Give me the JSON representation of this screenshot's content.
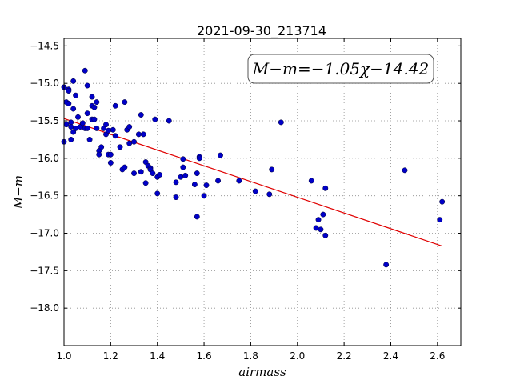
{
  "chart_data": {
    "type": "scatter",
    "title": "2021-09-30_213714",
    "xlabel": "airmass",
    "ylabel": "M−m",
    "xlim": [
      1.0,
      2.7
    ],
    "ylim": [
      -14.4,
      -18.5
    ],
    "x_tick_labels": [
      "1.0",
      "1.2",
      "1.4",
      "1.6",
      "1.8",
      "2.0",
      "2.2",
      "2.4",
      "2.6"
    ],
    "y_tick_labels": [
      "−14.5",
      "−15.0",
      "−15.5",
      "−16.0",
      "−16.5",
      "−17.0",
      "−17.5",
      "−18.0"
    ],
    "grid": true,
    "annotation": "M−m=−1.05χ−14.42",
    "points": {
      "x": [
        1.0,
        1.0,
        1.01,
        1.01,
        1.02,
        1.02,
        1.02,
        1.03,
        1.03,
        1.03,
        1.04,
        1.04,
        1.04,
        1.05,
        1.05,
        1.06,
        1.07,
        1.08,
        1.09,
        1.09,
        1.1,
        1.1,
        1.1,
        1.11,
        1.12,
        1.12,
        1.12,
        1.13,
        1.13,
        1.14,
        1.14,
        1.15,
        1.15,
        1.16,
        1.17,
        1.18,
        1.18,
        1.19,
        1.19,
        1.2,
        1.2,
        1.21,
        1.22,
        1.22,
        1.24,
        1.25,
        1.26,
        1.26,
        1.27,
        1.28,
        1.28,
        1.3,
        1.3,
        1.32,
        1.33,
        1.33,
        1.34,
        1.35,
        1.35,
        1.36,
        1.37,
        1.37,
        1.38,
        1.39,
        1.4,
        1.4,
        1.41,
        1.45,
        1.48,
        1.48,
        1.5,
        1.51,
        1.51,
        1.52,
        1.56,
        1.57,
        1.57,
        1.58,
        1.58,
        1.6,
        1.61,
        1.66,
        1.67,
        1.75,
        1.82,
        1.88,
        1.89,
        1.93,
        2.06,
        2.08,
        2.09,
        2.1,
        2.11,
        2.12,
        2.12,
        2.38,
        2.46,
        2.61,
        2.62
      ],
      "y": [
        -15.78,
        -15.05,
        -15.25,
        -15.55,
        -15.08,
        -15.1,
        -15.27,
        -15.52,
        -15.58,
        -15.75,
        -14.97,
        -15.34,
        -15.65,
        -15.16,
        -15.6,
        -15.45,
        -15.58,
        -15.53,
        -14.83,
        -15.6,
        -15.03,
        -15.4,
        -15.6,
        -15.75,
        -15.48,
        -15.3,
        -15.18,
        -15.32,
        -15.48,
        -15.25,
        -15.6,
        -15.9,
        -15.95,
        -15.85,
        -15.6,
        -15.55,
        -15.68,
        -15.95,
        -15.63,
        -16.06,
        -15.95,
        -15.62,
        -15.3,
        -15.7,
        -15.85,
        -16.15,
        -16.12,
        -15.25,
        -15.62,
        -15.58,
        -15.8,
        -15.78,
        -16.2,
        -15.68,
        -15.42,
        -16.18,
        -15.68,
        -16.33,
        -16.05,
        -16.1,
        -16.13,
        -16.15,
        -16.2,
        -15.48,
        -16.25,
        -16.47,
        -16.22,
        -15.5,
        -16.32,
        -16.52,
        -16.25,
        -16.01,
        -16.12,
        -16.23,
        -16.35,
        -16.78,
        -16.2,
        -15.98,
        -16.0,
        -16.5,
        -16.36,
        -16.3,
        -15.96,
        -16.3,
        -16.44,
        -16.48,
        -16.15,
        -15.52,
        -16.3,
        -16.93,
        -16.82,
        -16.95,
        -16.75,
        -17.03,
        -16.4,
        -17.42,
        -16.16,
        -16.82,
        -16.58
      ]
    },
    "fit": {
      "slope": -1.05,
      "intercept": -14.42,
      "x": [
        1.0,
        2.62
      ],
      "color": "#e00000"
    },
    "colors": {
      "points": "#0000c8",
      "fit": "#e00000",
      "grid": "#8c8c8c"
    }
  }
}
